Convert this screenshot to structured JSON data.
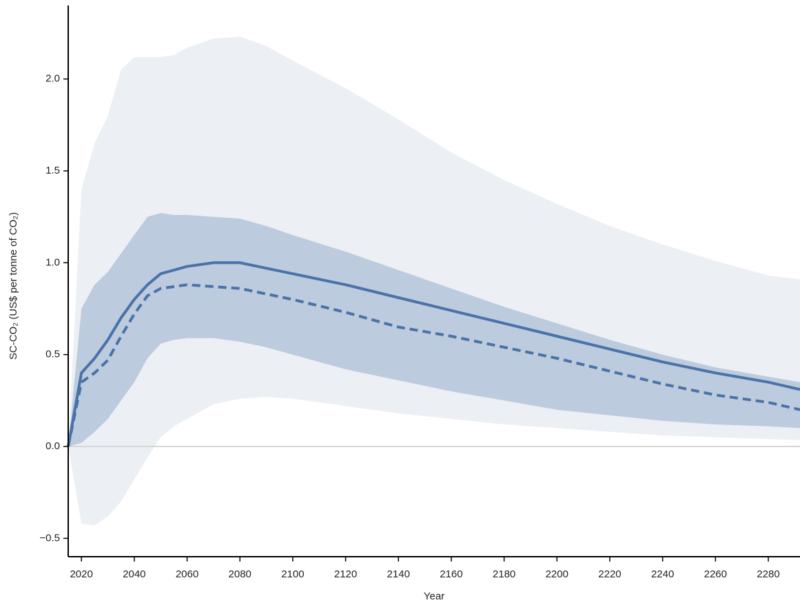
{
  "chart_data": {
    "type": "band-line",
    "y_label": "SC-CO₂ (US$ per tonne of CO₂)",
    "x_label": "Year",
    "x": [
      2015,
      2020,
      2025,
      2030,
      2035,
      2040,
      2045,
      2050,
      2055,
      2060,
      2070,
      2080,
      2090,
      2100,
      2120,
      2140,
      2160,
      2180,
      2200,
      2220,
      2240,
      2260,
      2280,
      2292
    ],
    "bands": [
      {
        "color": "#eceff4",
        "upper": [
          0,
          1.4,
          1.65,
          1.8,
          2.05,
          2.12,
          2.12,
          2.12,
          2.13,
          2.17,
          2.22,
          2.23,
          2.18,
          2.1,
          1.95,
          1.78,
          1.6,
          1.45,
          1.32,
          1.2,
          1.1,
          1.01,
          0.93,
          0.91
        ],
        "lower": [
          0,
          -0.42,
          -0.43,
          -0.38,
          -0.3,
          -0.18,
          -0.06,
          0.05,
          0.11,
          0.15,
          0.23,
          0.26,
          0.27,
          0.26,
          0.22,
          0.18,
          0.15,
          0.12,
          0.1,
          0.08,
          0.06,
          0.05,
          0.04,
          0.035
        ]
      },
      {
        "color": "#bccbdd",
        "upper": [
          0,
          0.75,
          0.88,
          0.95,
          1.05,
          1.15,
          1.25,
          1.27,
          1.26,
          1.26,
          1.25,
          1.24,
          1.2,
          1.15,
          1.06,
          0.96,
          0.86,
          0.76,
          0.67,
          0.58,
          0.5,
          0.43,
          0.38,
          0.35
        ],
        "lower": [
          0,
          0.02,
          0.08,
          0.15,
          0.25,
          0.35,
          0.48,
          0.56,
          0.58,
          0.59,
          0.59,
          0.57,
          0.54,
          0.5,
          0.42,
          0.36,
          0.3,
          0.25,
          0.2,
          0.17,
          0.14,
          0.12,
          0.11,
          0.1
        ]
      }
    ],
    "series": [
      {
        "color": "#4a72a8",
        "dashed": false,
        "values": [
          0,
          0.4,
          0.48,
          0.58,
          0.7,
          0.8,
          0.88,
          0.94,
          0.96,
          0.98,
          1.0,
          1.0,
          0.97,
          0.94,
          0.88,
          0.81,
          0.74,
          0.67,
          0.6,
          0.53,
          0.46,
          0.4,
          0.35,
          0.31
        ]
      },
      {
        "color": "#4a72a8",
        "dashed": true,
        "values": [
          0,
          0.35,
          0.4,
          0.47,
          0.6,
          0.72,
          0.82,
          0.86,
          0.87,
          0.88,
          0.87,
          0.86,
          0.83,
          0.8,
          0.73,
          0.65,
          0.6,
          0.54,
          0.48,
          0.41,
          0.34,
          0.28,
          0.24,
          0.2
        ]
      }
    ],
    "reference_line": 0,
    "xlim": [
      2015,
      2292
    ],
    "xticks": [
      2020,
      2040,
      2060,
      2080,
      2100,
      2120,
      2140,
      2160,
      2180,
      2200,
      2220,
      2240,
      2260,
      2280
    ],
    "ylim": [
      -0.6,
      2.4
    ],
    "yticks": [
      {
        "value": -0.5,
        "label": "−0.5"
      },
      {
        "value": 0,
        "label": "0.0"
      },
      {
        "value": 0.5,
        "label": "0.5"
      },
      {
        "value": 1,
        "label": "1.0"
      },
      {
        "value": 1.5,
        "label": "1.5"
      },
      {
        "value": 2,
        "label": "2.0"
      }
    ]
  }
}
